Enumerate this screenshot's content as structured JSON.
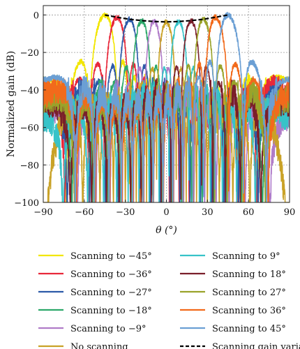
{
  "chart_data": {
    "type": "line",
    "xlabel": "θ (°)",
    "ylabel": "Normalized gain (dB)",
    "xlim": [
      -90,
      90
    ],
    "ylim": [
      -100,
      5
    ],
    "xticks": [
      -90,
      -60,
      -30,
      0,
      30,
      60,
      90
    ],
    "xtick_labels": [
      "−90",
      "−60",
      "−30",
      "0",
      "30",
      "60",
      "90"
    ],
    "yticks": [
      0,
      -20,
      -40,
      -60,
      -80,
      -100
    ],
    "ytick_labels": [
      "0",
      "−20",
      "−40",
      "−60",
      "−80",
      "−100"
    ],
    "grid": true,
    "legend_position": "bottom",
    "series": [
      {
        "name": "Scanning to −45°",
        "color": "#f2e600",
        "peak_theta": -45,
        "peak_gain": 0
      },
      {
        "name": "Scanning to −36°",
        "color": "#e8283a",
        "peak_theta": -36,
        "peak_gain": -1.2
      },
      {
        "name": "Scanning to −27°",
        "color": "#2c5aa8",
        "peak_theta": -27,
        "peak_gain": -2.3
      },
      {
        "name": "Scanning to −18°",
        "color": "#2ca86a",
        "peak_theta": -18,
        "peak_gain": -3.0
      },
      {
        "name": "Scanning to −9°",
        "color": "#b07cc8",
        "peak_theta": -9,
        "peak_gain": -3.5
      },
      {
        "name": "No scanning",
        "color": "#c9a227",
        "peak_theta": 0,
        "peak_gain": -3.7
      },
      {
        "name": "Scanning to 9°",
        "color": "#37c3c8",
        "peak_theta": 9,
        "peak_gain": -3.5
      },
      {
        "name": "Scanning to 18°",
        "color": "#7a1f2a",
        "peak_theta": 18,
        "peak_gain": -3.0
      },
      {
        "name": "Scanning to 27°",
        "color": "#9aa32a",
        "peak_theta": 27,
        "peak_gain": -2.3
      },
      {
        "name": "Scanning to 36°",
        "color": "#f26a1b",
        "peak_theta": 36,
        "peak_gain": -1.2
      },
      {
        "name": "Scanning to 45°",
        "color": "#6b9fd4",
        "peak_theta": 45,
        "peak_gain": 0
      }
    ],
    "gain_variation": {
      "name": "Scanning gain variation",
      "color": "#000000",
      "style": "dashed",
      "x": [
        -45,
        -36,
        -27,
        -18,
        -9,
        0,
        9,
        18,
        27,
        36,
        45
      ],
      "y": [
        0,
        -1.2,
        -2.3,
        -3.0,
        -3.5,
        -3.7,
        -3.5,
        -3.0,
        -2.3,
        -1.2,
        0
      ]
    }
  }
}
